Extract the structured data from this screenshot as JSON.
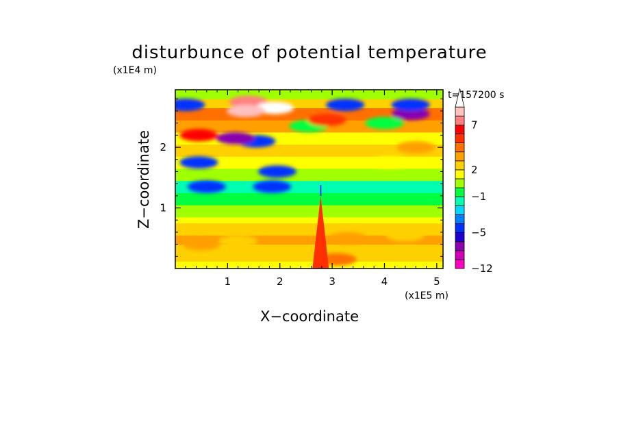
{
  "chart_data": {
    "type": "heatmap",
    "title": "disturbunce of potential temperature",
    "xlabel": "X−coordinate",
    "ylabel": "Z−coordinate",
    "x_unit": "(x1E5 m)",
    "y_unit": "(x1E4 m)",
    "time_label": "t=157200 s",
    "xlim": [
      0,
      5.12
    ],
    "ylim": [
      0,
      2.95
    ],
    "x_ticks": [
      "1",
      "2",
      "3",
      "4",
      "5"
    ],
    "y_ticks": [
      "1",
      "2"
    ],
    "colorbar": {
      "levels": [
        -12,
        -10,
        -8,
        -6,
        -5,
        -4,
        -3,
        -2,
        -1,
        0,
        1,
        2,
        3,
        4,
        5,
        6,
        7,
        8,
        9
      ],
      "colors": [
        "#ff00c0",
        "#d000b8",
        "#8800b0",
        "#2000d0",
        "#0030ff",
        "#0080ff",
        "#00d8ff",
        "#00ffb0",
        "#00ff40",
        "#a0ff00",
        "#ffff00",
        "#ffd000",
        "#ffa000",
        "#ff7000",
        "#ff3000",
        "#ff0000",
        "#ff8080",
        "#ffc0c0",
        "#ffffff"
      ],
      "tick_labels": [
        "−12",
        "−5",
        "−1",
        "2",
        "7"
      ],
      "tick_values": [
        -12,
        -5,
        -1,
        2,
        7
      ],
      "extend": "max"
    },
    "field_features": [
      {
        "kind": "blob",
        "x": 0.2,
        "z": 2.7,
        "value": -5
      },
      {
        "kind": "blob",
        "x": 1.4,
        "z": 2.75,
        "value": 7
      },
      {
        "kind": "blob",
        "x": 1.9,
        "z": 2.65,
        "value": 9
      },
      {
        "kind": "blob",
        "x": 1.35,
        "z": 2.6,
        "value": 8
      },
      {
        "kind": "blob",
        "x": 1.55,
        "z": 2.1,
        "value": -5
      },
      {
        "kind": "blob",
        "x": 1.15,
        "z": 2.15,
        "value": -8
      },
      {
        "kind": "blob",
        "x": 0.45,
        "z": 1.75,
        "value": -5
      },
      {
        "kind": "blob",
        "x": 0.45,
        "z": 2.2,
        "value": 6
      },
      {
        "kind": "blob",
        "x": 1.95,
        "z": 1.6,
        "value": -5
      },
      {
        "kind": "blob",
        "x": 3.25,
        "z": 2.7,
        "value": -5
      },
      {
        "kind": "blob",
        "x": 4.5,
        "z": 2.55,
        "value": -7
      },
      {
        "kind": "blob",
        "x": 4.5,
        "z": 2.7,
        "value": -5
      },
      {
        "kind": "blob",
        "x": 4.0,
        "z": 2.4,
        "value": -1
      },
      {
        "kind": "blob",
        "x": 4.6,
        "z": 2.0,
        "value": 3
      },
      {
        "kind": "blob",
        "x": 4.1,
        "z": 1.75,
        "value": 1
      },
      {
        "kind": "blob",
        "x": 0.6,
        "z": 1.35,
        "value": -5
      },
      {
        "kind": "blob",
        "x": 1.85,
        "z": 1.35,
        "value": -5
      },
      {
        "kind": "blob",
        "x": 2.55,
        "z": 2.35,
        "value": -1
      },
      {
        "kind": "blob",
        "x": 2.9,
        "z": 2.45,
        "value": 5
      },
      {
        "kind": "blob",
        "x": 0.5,
        "z": 0.4,
        "value": 3
      },
      {
        "kind": "blob",
        "x": 1.2,
        "z": 0.45,
        "value": 2
      },
      {
        "kind": "blob",
        "x": 3.3,
        "z": 0.5,
        "value": 3
      },
      {
        "kind": "blob",
        "x": 4.4,
        "z": 0.55,
        "value": 2
      },
      {
        "kind": "blob",
        "x": 3.1,
        "z": 0.15,
        "value": 4
      },
      {
        "kind": "spike",
        "x": 2.78,
        "z": 1.2,
        "value": 5
      }
    ]
  }
}
